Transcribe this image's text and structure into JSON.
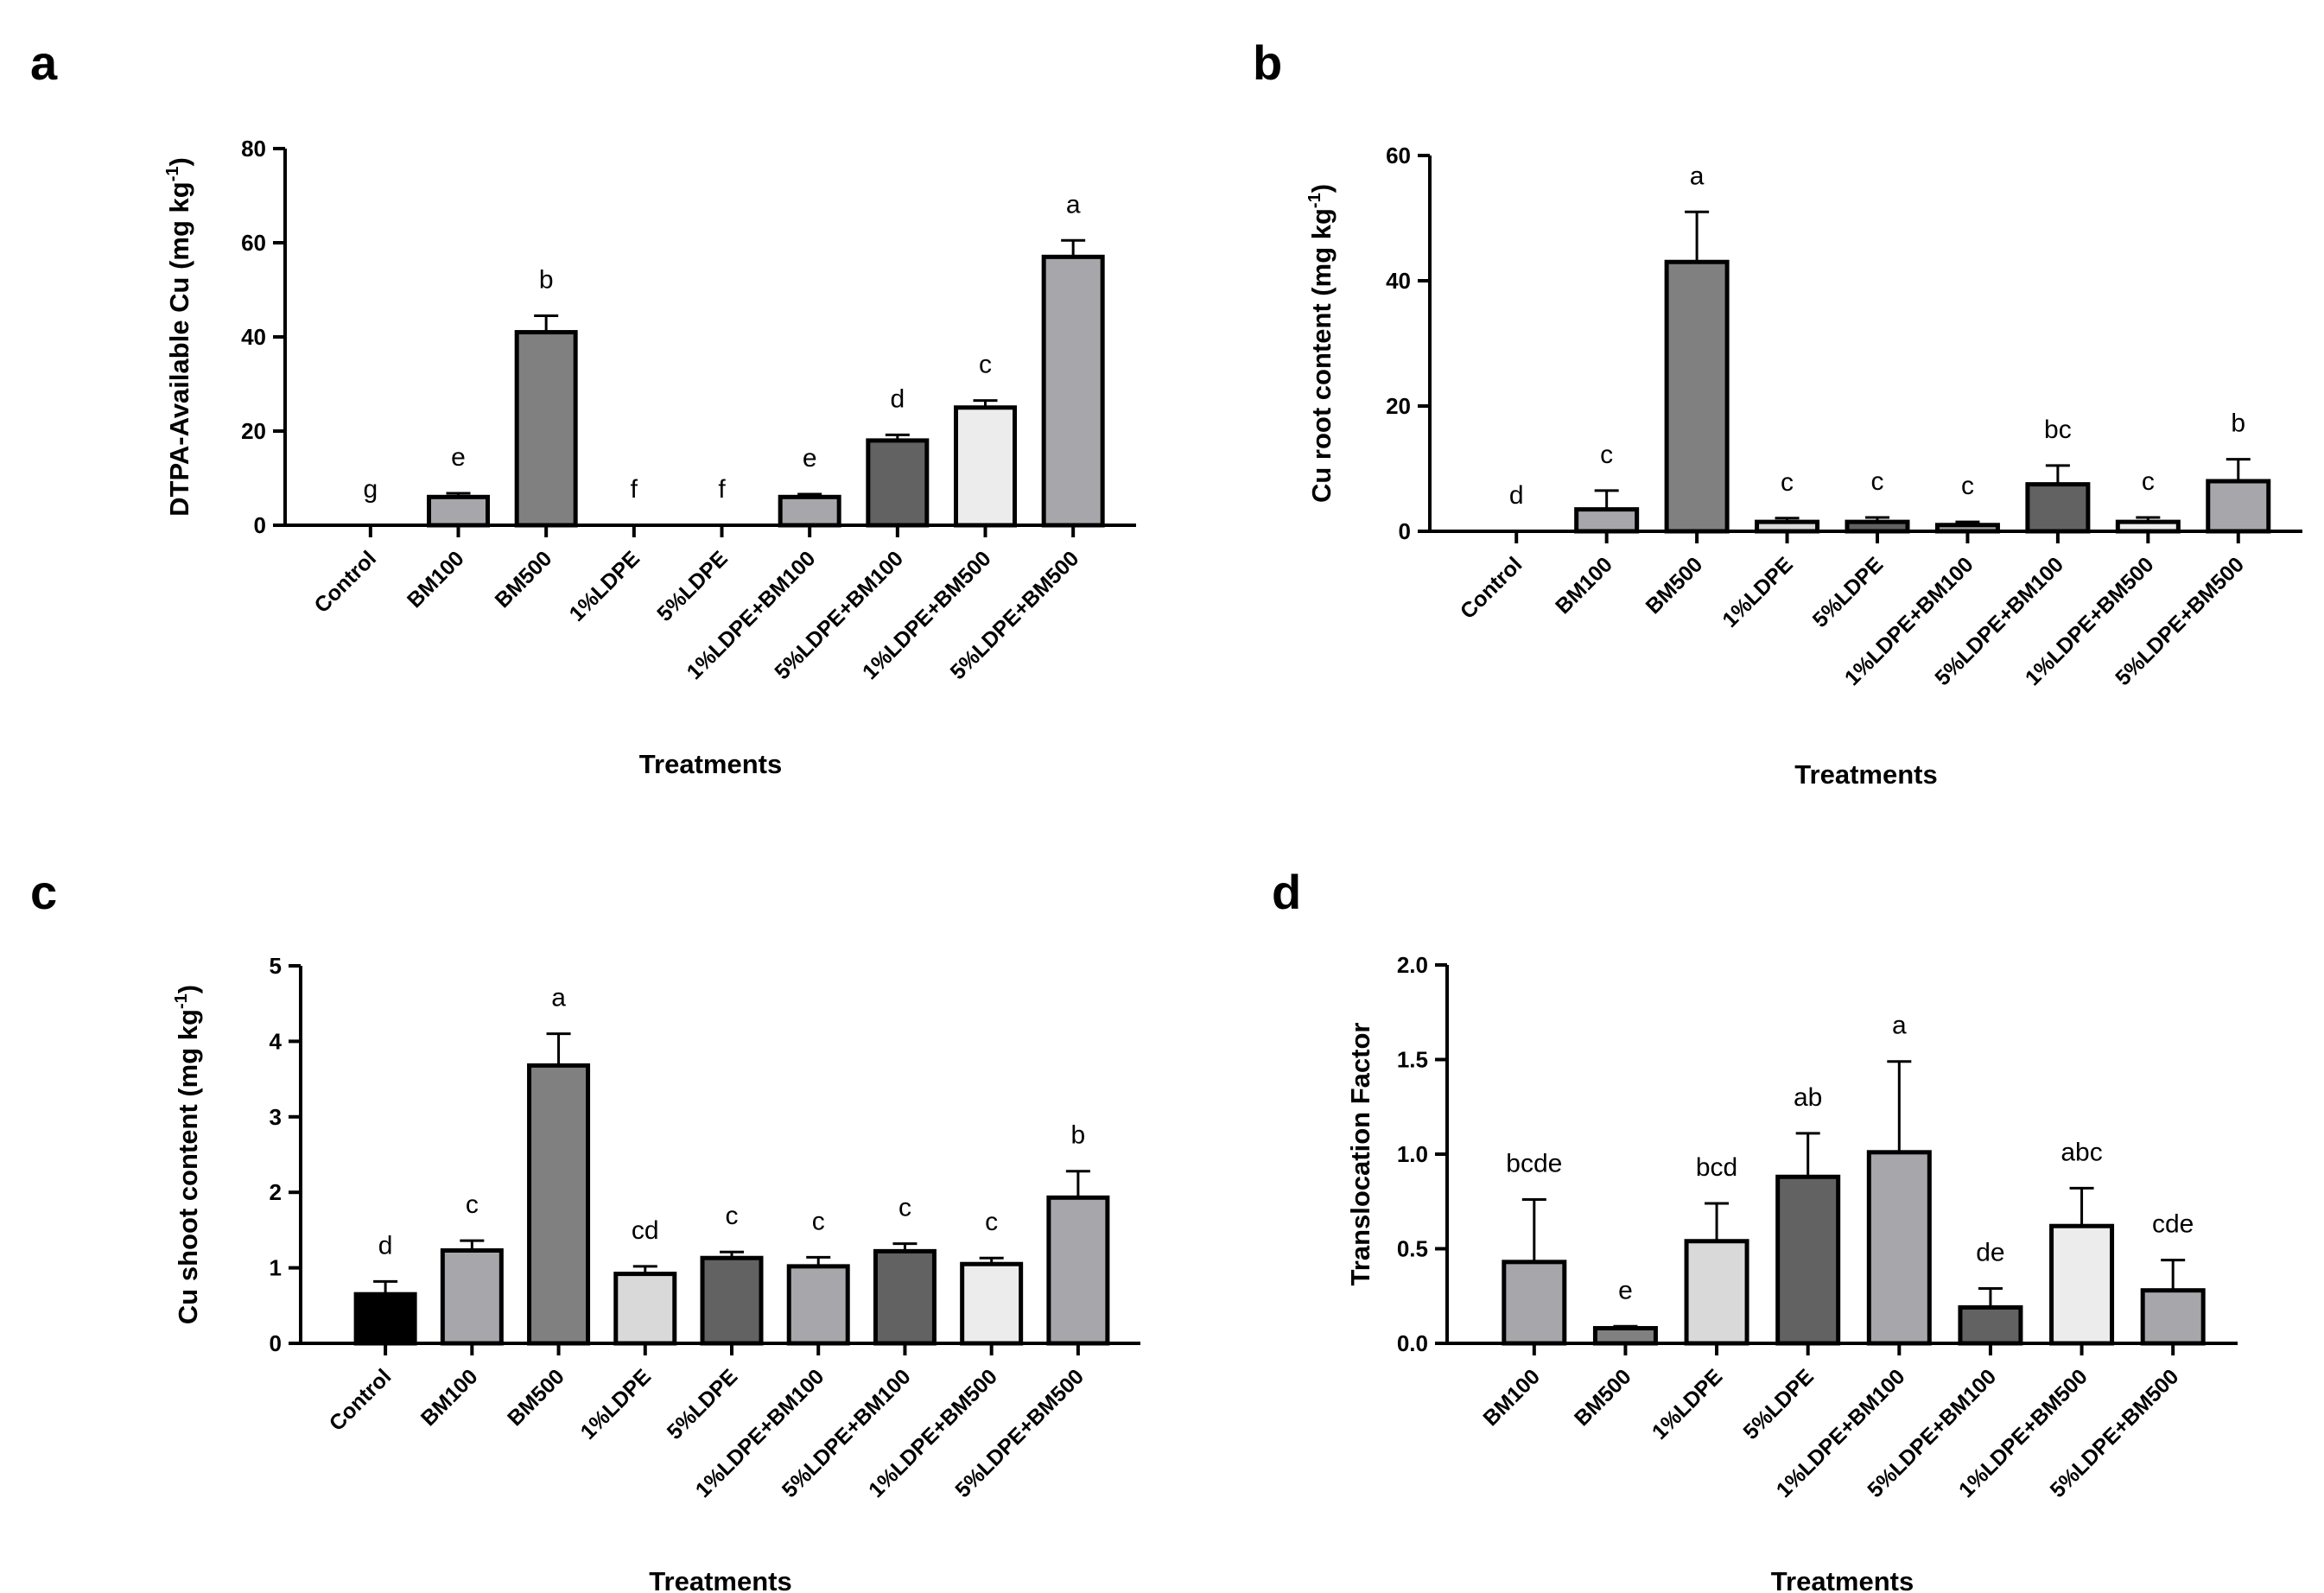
{
  "chart_data": [
    {
      "panel": "a",
      "type": "bar",
      "categories": [
        "Control",
        "BM100",
        "BM500",
        "1%LDPE",
        "5%LDPE",
        "1%LDPE+BM100",
        "5%LDPE+BM100",
        "1%LDPE+BM500",
        "5%LDPE+BM500"
      ],
      "values": [
        0,
        6,
        41,
        0,
        0,
        6,
        18,
        25,
        57
      ],
      "errors": [
        0,
        0.8,
        3.5,
        0,
        0,
        0.6,
        1.2,
        1.5,
        3.5
      ],
      "letters": [
        "g",
        "e",
        "b",
        "f",
        "f",
        "e",
        "d",
        "c",
        "a"
      ],
      "colors": [
        "#000000",
        "#a6a6ab",
        "#808080",
        "#d9d9d9",
        "#626262",
        "#a6a6ab",
        "#626262",
        "#ececec",
        "#a6a6ab"
      ],
      "xlabel": "Treatments",
      "ylabel": "DTPA-Available Cu  (mg kg",
      "ylabel_sup": "-1",
      "ylabel_end": ")",
      "ylim": [
        0,
        80
      ],
      "yticks": [
        0,
        20,
        40,
        60,
        80
      ]
    },
    {
      "panel": "b",
      "type": "bar",
      "categories": [
        "Control",
        "BM100",
        "BM500",
        "1%LDPE",
        "5%LDPE",
        "1%LDPE+BM100",
        "5%LDPE+BM100",
        "1%LDPE+BM500",
        "5%LDPE+BM500"
      ],
      "values": [
        0,
        3.5,
        43,
        1.5,
        1.5,
        1,
        7.5,
        1.5,
        8
      ],
      "errors": [
        0,
        3,
        8,
        0.6,
        0.7,
        0.5,
        3,
        0.7,
        3.5
      ],
      "letters": [
        "d",
        "c",
        "a",
        "c",
        "c",
        "c",
        "bc",
        "c",
        "b"
      ],
      "colors": [
        "#000000",
        "#a6a6ab",
        "#808080",
        "#d9d9d9",
        "#626262",
        "#a6a6ab",
        "#626262",
        "#ececec",
        "#a6a6ab"
      ],
      "xlabel": "Treatments",
      "ylabel": "Cu root content (mg kg",
      "ylabel_sup": "-1",
      "ylabel_end": ")",
      "ylim": [
        0,
        60
      ],
      "yticks": [
        0,
        20,
        40,
        60
      ]
    },
    {
      "panel": "c",
      "type": "bar",
      "categories": [
        "Control",
        "BM100",
        "BM500",
        "1%LDPE",
        "5%LDPE",
        "1%LDPE+BM100",
        "5%LDPE+BM100",
        "1%LDPE+BM500",
        "5%LDPE+BM500"
      ],
      "values": [
        0.65,
        1.23,
        3.68,
        0.92,
        1.13,
        1.02,
        1.22,
        1.05,
        1.93
      ],
      "errors": [
        0.17,
        0.13,
        0.42,
        0.1,
        0.08,
        0.12,
        0.1,
        0.08,
        0.35
      ],
      "letters": [
        "d",
        "c",
        "a",
        "cd",
        "c",
        "c",
        "c",
        "c",
        "b"
      ],
      "colors": [
        "#000000",
        "#a6a6ab",
        "#808080",
        "#d9d9d9",
        "#626262",
        "#a6a6ab",
        "#626262",
        "#ececec",
        "#a6a6ab"
      ],
      "xlabel": "Treatments",
      "ylabel": "Cu shoot content (mg kg",
      "ylabel_sup": "-1",
      "ylabel_end": ")",
      "ylim": [
        0,
        5
      ],
      "yticks": [
        0,
        1,
        2,
        3,
        4,
        5
      ]
    },
    {
      "panel": "d",
      "type": "bar",
      "categories": [
        "BM100",
        "BM500",
        "1%LDPE",
        "5%LDPE",
        "1%LDPE+BM100",
        "5%LDPE+BM100",
        "1%LDPE+BM500",
        "5%LDPE+BM500"
      ],
      "values": [
        0.43,
        0.08,
        0.54,
        0.88,
        1.01,
        0.19,
        0.62,
        0.28
      ],
      "errors": [
        0.33,
        0.01,
        0.2,
        0.23,
        0.48,
        0.1,
        0.2,
        0.16
      ],
      "letters": [
        "bcde",
        "e",
        "bcd",
        "ab",
        "a",
        "de",
        "abc",
        "cde"
      ],
      "colors": [
        "#a6a6ab",
        "#808080",
        "#d9d9d9",
        "#626262",
        "#a6a6ab",
        "#626262",
        "#ececec",
        "#a6a6ab"
      ],
      "xlabel": "Treatments",
      "ylabel": "Translocation Factor",
      "ylabel_sup": "",
      "ylabel_end": "",
      "ylim": [
        0,
        2.0
      ],
      "yticks": [
        "0.0",
        "0.5",
        "1.0",
        "1.5",
        "2.0"
      ]
    }
  ]
}
